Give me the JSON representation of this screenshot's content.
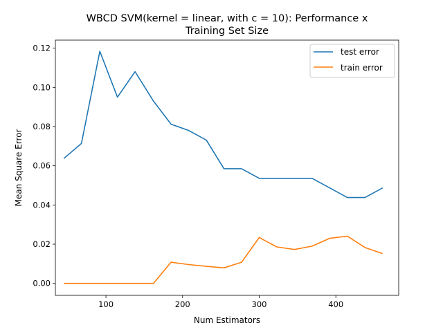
{
  "chart_data": {
    "type": "line",
    "title": [
      "WBCD SVM(kernel = linear, with c = 10): Performance x",
      "Training Set Size"
    ],
    "xlabel": "Num Estimators",
    "ylabel": "Mean Square Error",
    "xlim": [
      34,
      482
    ],
    "ylim": [
      -0.0061,
      0.1241
    ],
    "xticks": [
      100,
      200,
      300,
      400
    ],
    "yticks": [
      0.0,
      0.02,
      0.04,
      0.06,
      0.08,
      0.1,
      0.12
    ],
    "ytick_labels": [
      "0.00",
      "0.02",
      "0.04",
      "0.06",
      "0.08",
      "0.10",
      "0.12"
    ],
    "grid": false,
    "legend_position": "top-right",
    "x": [
      45,
      68,
      92,
      115,
      138,
      162,
      185,
      208,
      231,
      254,
      277,
      300,
      323,
      346,
      369,
      392,
      415,
      438,
      461
    ],
    "series": [
      {
        "name": "test error",
        "color": "#1f77b4",
        "values": [
          0.0637,
          0.0714,
          0.1184,
          0.095,
          0.108,
          0.093,
          0.0812,
          0.078,
          0.0731,
          0.0585,
          0.0585,
          0.0536,
          0.0536,
          0.0536,
          0.0536,
          0.0487,
          0.0438,
          0.0438,
          0.0487
        ]
      },
      {
        "name": "train error",
        "color": "#ff7f0e",
        "values": [
          0.0,
          0.0,
          0.0,
          0.0,
          0.0,
          0.0,
          0.0108,
          0.0096,
          0.0087,
          0.0079,
          0.0108,
          0.0234,
          0.0186,
          0.0173,
          0.019,
          0.023,
          0.0241,
          0.0183,
          0.0152
        ]
      }
    ]
  }
}
